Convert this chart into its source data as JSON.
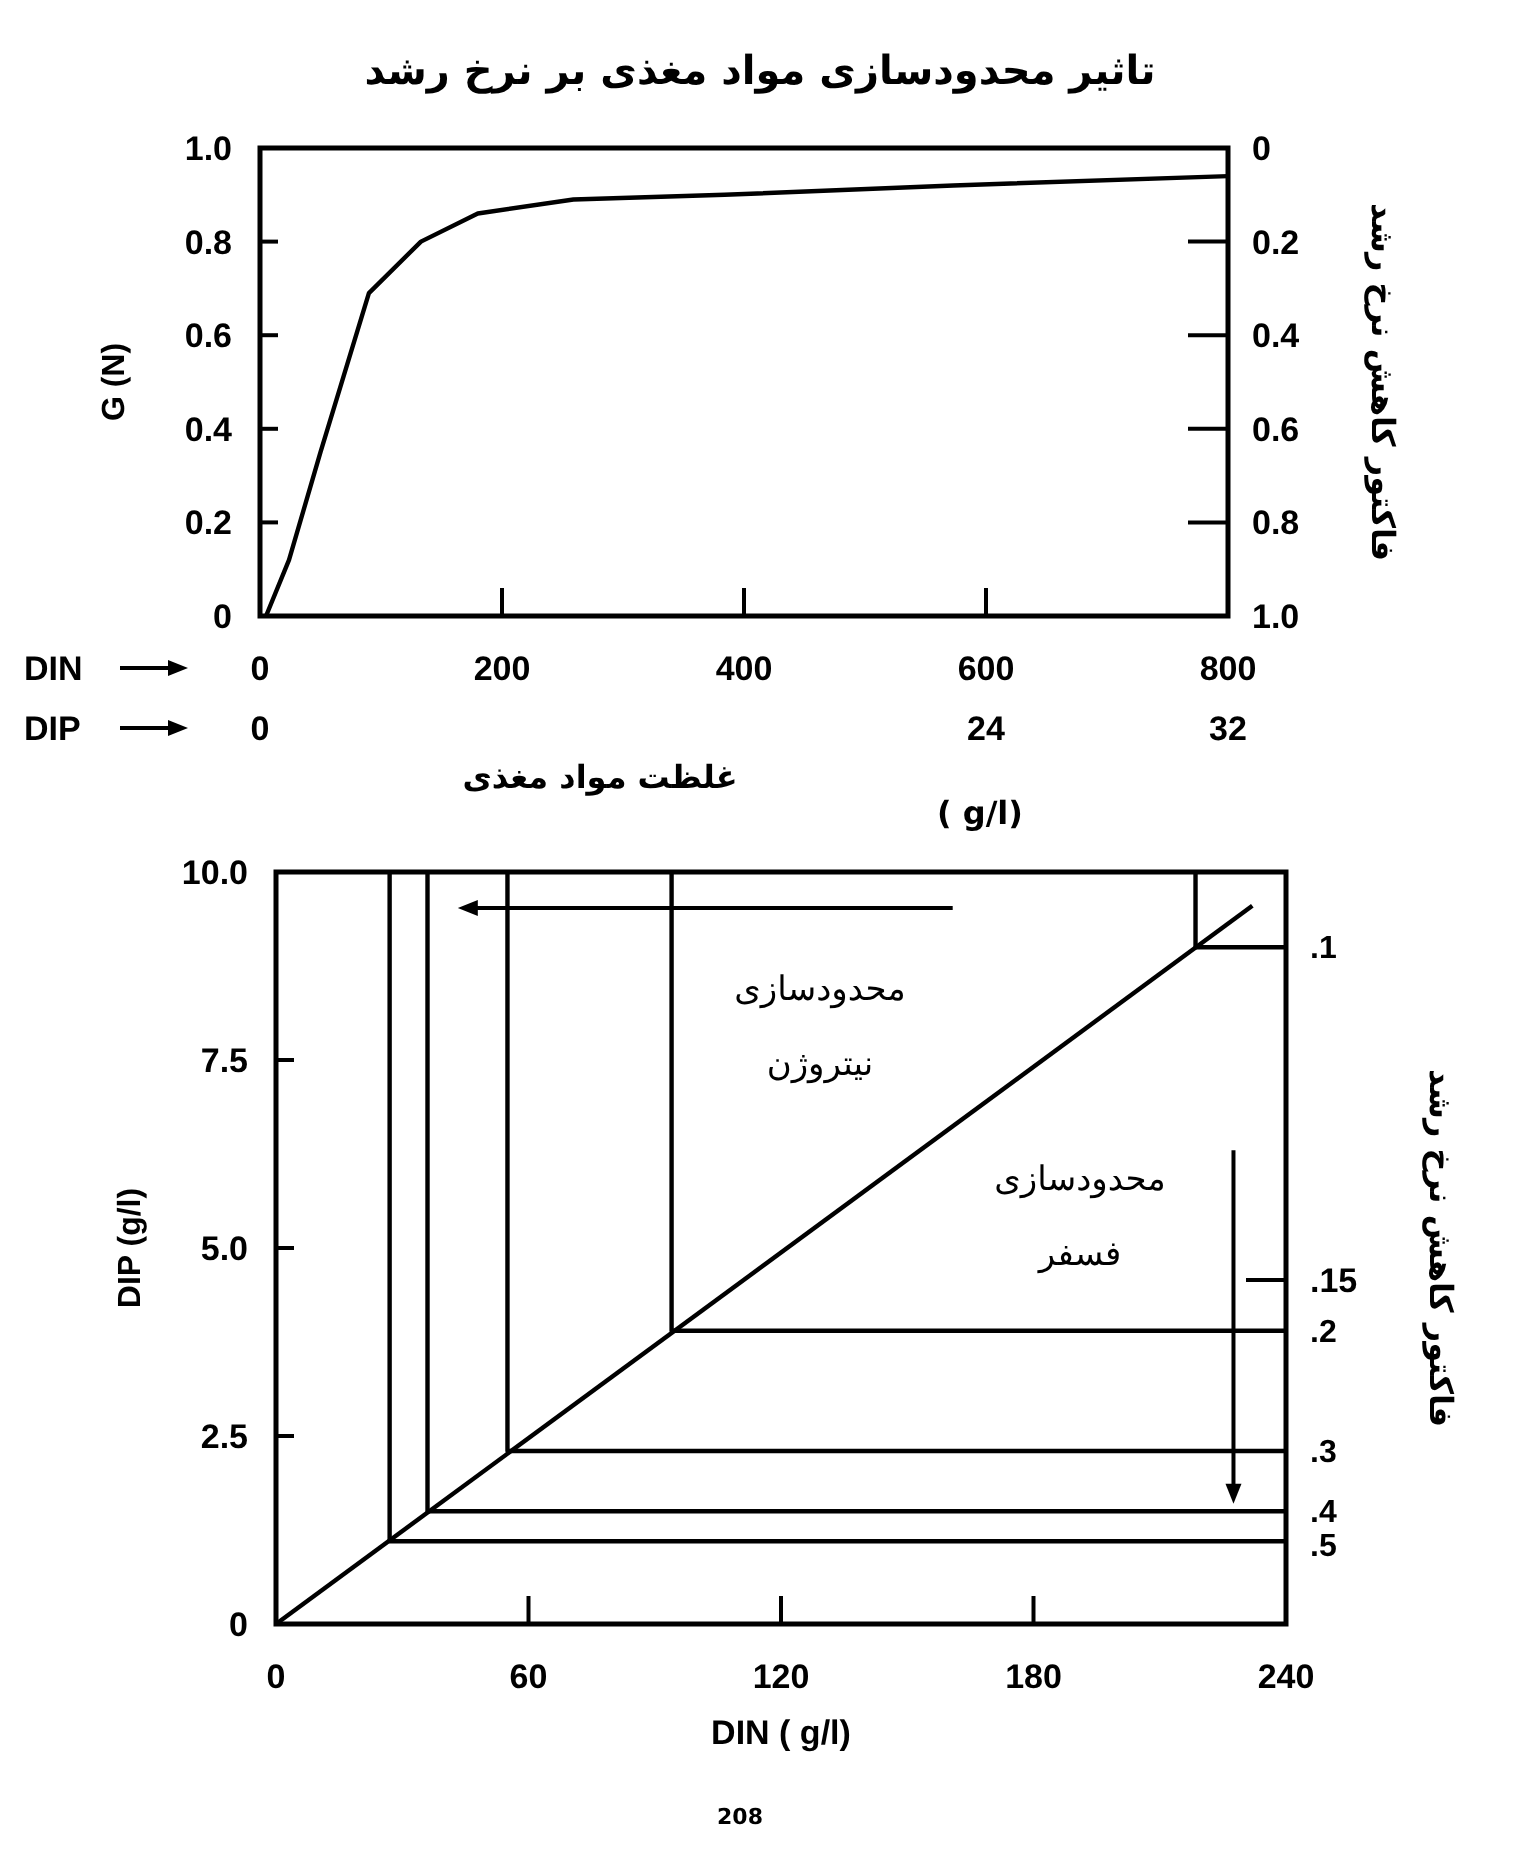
{
  "chart_data": [
    {
      "type": "line",
      "title": "تاثیر محدودسازی مواد مغذی بر نرخ رشد",
      "xlabel": "DIN",
      "x2label": "DIP",
      "ylabel": "G (N)",
      "y2label": "فاکتور کاهش نرخ رشد",
      "xlim": [
        0,
        800
      ],
      "xticks": [
        0,
        200,
        400,
        600,
        800
      ],
      "x2lim": [
        0,
        32
      ],
      "x2ticks": [
        0,
        24,
        32
      ],
      "ylim": [
        0,
        1
      ],
      "yticks": [
        0,
        0.2,
        0.4,
        0.6,
        0.8,
        {
          "value": 1,
          "label": "1.0"
        }
      ],
      "y2lim": [
        1,
        0
      ],
      "y2ticks": [
        0,
        0.2,
        0.4,
        0.6,
        0.8,
        {
          "value": 1,
          "label": "1.0"
        }
      ],
      "series": [
        {
          "color": "#000000",
          "x": [
            5,
            24,
            50,
            90,
            133,
            180,
            259,
            384,
            573,
            800
          ],
          "values": [
            0,
            0.12,
            0.35,
            0.69,
            0.8,
            0.86,
            0.89,
            0.9,
            0.92,
            0.94
          ]
        }
      ],
      "annotations": [
        "غلظت مواد مغذی",
        "( g/l)"
      ]
    },
    {
      "type": "line",
      "xlabel": "DIN ( g/l)",
      "ylabel": "DIP (g/l)",
      "y2label": "فاکتور کاهش نرخ رشد",
      "xlim": [
        0,
        240
      ],
      "xticks": [
        0,
        60,
        120,
        180,
        240
      ],
      "ylim": [
        0,
        10
      ],
      "yticks": [
        0,
        2.5,
        {
          "value": 5,
          "label": "5.0"
        },
        7.5,
        {
          "value": 10,
          "label": "10.0"
        }
      ],
      "series": [
        {
          "color": "#000000",
          "x": [
            0,
            232
          ],
          "values": [
            0,
            9.55
          ]
        },
        {
          "name": ".1",
          "color": "#000000",
          "x": [
            218.5,
            218.5,
            240
          ],
          "values": [
            10,
            9,
            9
          ]
        },
        {
          "name": ".2",
          "color": "#000000",
          "x": [
            94,
            94,
            240
          ],
          "values": [
            10,
            3.9,
            3.9
          ]
        },
        {
          "name": ".3",
          "color": "#000000",
          "x": [
            55,
            55,
            240
          ],
          "values": [
            10,
            2.3,
            2.3
          ]
        },
        {
          "name": ".4",
          "color": "#000000",
          "x": [
            36,
            36,
            240
          ],
          "values": [
            10,
            1.5,
            1.5
          ]
        },
        {
          "name": ".5",
          "color": "#000000",
          "x": [
            27,
            27,
            240
          ],
          "values": [
            10,
            1.1,
            1.1
          ]
        }
      ],
      "annotations": [
        "محدودسازی نیتروژن",
        "محدودسازی فسفر",
        "208",
        ".15"
      ]
    }
  ]
}
